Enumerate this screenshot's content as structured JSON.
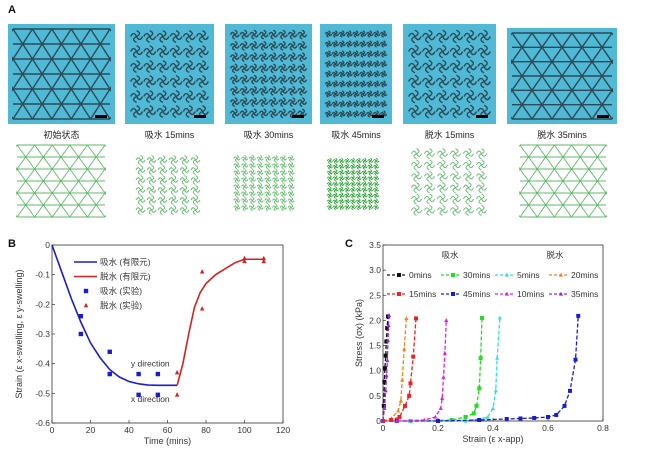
{
  "panel_a": {
    "letter": "A",
    "photo_color": "#4fb9d6",
    "states": [
      {
        "caption": "初始状态",
        "pattern": "triangle-lattice"
      },
      {
        "caption": "吸水 15mins",
        "pattern": "swirl"
      },
      {
        "caption": "吸水 30mins",
        "pattern": "swirl"
      },
      {
        "caption": "吸水 45mins",
        "pattern": "swirl"
      },
      {
        "caption": "脱水 15mins",
        "pattern": "swirl"
      },
      {
        "caption": "脱水 35mins",
        "pattern": "triangle-lattice"
      }
    ]
  },
  "chart_data": [
    {
      "panel": "B",
      "type": "line",
      "xlabel": "Time (mins)",
      "ylabel": "Strain (ε x-swelling, ε y-swelling)",
      "xlim": [
        0,
        120
      ],
      "ylim": [
        -0.6,
        0
      ],
      "xticks": [
        "0",
        "20",
        "40",
        "60",
        "80",
        "100",
        "120"
      ],
      "yticks": [
        "0",
        "-0.1",
        "-0.2",
        "-0.3",
        "-0.4",
        "-0.5",
        "-0.6"
      ],
      "legend_position": "top-left",
      "annotations": [
        {
          "text": "y direction",
          "x": 41,
          "y": -0.41
        },
        {
          "text": "x direction",
          "x": 41,
          "y": -0.53
        }
      ],
      "series": [
        {
          "name": "吸水 (有限元)",
          "kind": "line",
          "color": "#1c1ccc",
          "x": [
            0,
            5,
            10,
            15,
            20,
            25,
            30,
            35,
            40,
            45,
            50,
            55,
            60,
            65
          ],
          "y": [
            0,
            -0.09,
            -0.18,
            -0.26,
            -0.33,
            -0.38,
            -0.42,
            -0.445,
            -0.46,
            -0.468,
            -0.472,
            -0.473,
            -0.473,
            -0.473
          ]
        },
        {
          "name": "脱水 (有限元)",
          "kind": "line",
          "color": "#d42020",
          "x": [
            65,
            68,
            71,
            74,
            77,
            80,
            85,
            90,
            95,
            100,
            110
          ],
          "y": [
            -0.473,
            -0.4,
            -0.3,
            -0.21,
            -0.16,
            -0.13,
            -0.1,
            -0.08,
            -0.06,
            -0.048,
            -0.048
          ]
        },
        {
          "name": "吸水 (实验)",
          "kind": "scatter",
          "marker": "square",
          "color": "#1c1ccc",
          "x": [
            15,
            15,
            30,
            30,
            45,
            45,
            55,
            55
          ],
          "y": [
            -0.24,
            -0.3,
            -0.36,
            -0.435,
            -0.435,
            -0.505,
            -0.435,
            -0.505
          ]
        },
        {
          "name": "脱水 (实验)",
          "kind": "scatter",
          "marker": "triangle",
          "color": "#d42020",
          "x": [
            65,
            65,
            78,
            78,
            100,
            100,
            110,
            110
          ],
          "y": [
            -0.43,
            -0.505,
            -0.09,
            -0.215,
            -0.045,
            -0.055,
            -0.045,
            -0.055
          ]
        }
      ]
    },
    {
      "panel": "C",
      "type": "line",
      "xlabel": "Strain (ε x-app)",
      "ylabel": "Stress (σx) (kPa)",
      "xlim": [
        0,
        0.8
      ],
      "ylim": [
        0,
        3.5
      ],
      "xticks": [
        "0",
        "0.2",
        "0.4",
        "0.6",
        "0.8"
      ],
      "yticks": [
        "0",
        "0.5",
        "1.0",
        "1.5",
        "2.0",
        "2.5",
        "3.0",
        "3.5"
      ],
      "group_labels": [
        "吸水",
        "脱水"
      ],
      "legend_position": "top",
      "series": [
        {
          "name": "0mins",
          "marker": "square",
          "color": "#111111",
          "x": [
            0,
            0.003,
            0.005,
            0.007,
            0.01,
            0.012,
            0.015,
            0.018
          ],
          "y": [
            0,
            0.3,
            0.78,
            1.05,
            1.3,
            1.58,
            1.85,
            2.08
          ]
        },
        {
          "name": "30mins",
          "marker": "square",
          "color": "#22dd22",
          "x": [
            0.1,
            0.25,
            0.3,
            0.33,
            0.34,
            0.35,
            0.355,
            0.36
          ],
          "y": [
            0,
            0.02,
            0.08,
            0.15,
            0.3,
            0.65,
            1.25,
            2.05
          ]
        },
        {
          "name": "5mins",
          "marker": "triangle",
          "color": "#33dde0",
          "x": [
            0.1,
            0.3,
            0.38,
            0.4,
            0.41,
            0.415,
            0.425
          ],
          "y": [
            0,
            0,
            0.07,
            0.25,
            0.6,
            1.25,
            2.05
          ]
        },
        {
          "name": "20mins",
          "marker": "triangle",
          "color": "#f08020",
          "x": [
            0,
            0.03,
            0.055,
            0.065,
            0.07,
            0.077,
            0.085
          ],
          "y": [
            0,
            0.05,
            0.2,
            0.4,
            0.82,
            1.43,
            2.04
          ]
        },
        {
          "name": "15mins",
          "marker": "square",
          "color": "#ee2222",
          "x": [
            0,
            0.03,
            0.06,
            0.08,
            0.095,
            0.1,
            0.11,
            0.12
          ],
          "y": [
            0,
            0.02,
            0.08,
            0.3,
            0.5,
            0.75,
            1.28,
            2.04
          ]
        },
        {
          "name": "45mins",
          "marker": "square",
          "color": "#1c1ccc",
          "x": [
            0.05,
            0.2,
            0.35,
            0.45,
            0.5,
            0.55,
            0.6,
            0.63,
            0.66,
            0.68,
            0.7,
            0.71
          ],
          "y": [
            0,
            0,
            0.02,
            0.04,
            0.05,
            0.06,
            0.08,
            0.12,
            0.3,
            0.6,
            1.22,
            2.09
          ]
        },
        {
          "name": "10mins",
          "marker": "triangle",
          "color": "#dd22dd",
          "x": [
            0.05,
            0.15,
            0.19,
            0.21,
            0.215,
            0.22,
            0.225,
            0.23
          ],
          "y": [
            0,
            0.02,
            0.08,
            0.25,
            0.45,
            0.87,
            1.35,
            2.0
          ]
        },
        {
          "name": "35mins",
          "marker": "triangle",
          "color": "#8a2be2",
          "x": [
            0,
            0.005,
            0.01,
            0.013,
            0.016,
            0.018,
            0.02,
            0.022
          ],
          "y": [
            0,
            0.25,
            0.6,
            0.9,
            1.2,
            1.6,
            1.9,
            2.1
          ]
        }
      ]
    }
  ]
}
